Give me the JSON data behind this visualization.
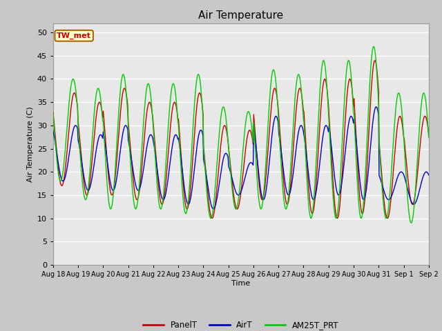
{
  "title": "Air Temperature",
  "ylabel": "Air Temperature (C)",
  "xlabel": "Time",
  "annotation": "TW_met",
  "ylim": [
    0,
    52
  ],
  "yticks": [
    0,
    5,
    10,
    15,
    20,
    25,
    30,
    35,
    40,
    45,
    50
  ],
  "colors": {
    "PanelT": "#cc0000",
    "AirT": "#0000cc",
    "AM25T_PRT": "#00cc00",
    "fig_bg": "#c8c8c8",
    "plot_bg": "#e8e8e8",
    "grid": "#ffffff",
    "annotation_bg": "#ffffcc",
    "annotation_border": "#aa6600"
  },
  "n_days": 15,
  "day_peaks_panel": [
    37,
    35,
    38,
    35,
    35,
    37,
    30,
    29,
    38,
    38,
    40,
    40,
    44,
    32,
    32
  ],
  "day_peaks_air": [
    30,
    28,
    30,
    28,
    28,
    29,
    24,
    22,
    32,
    30,
    30,
    32,
    34,
    20,
    20
  ],
  "day_peaks_am25": [
    40,
    38,
    41,
    39,
    39,
    41,
    34,
    33,
    42,
    41,
    44,
    44,
    47,
    37,
    37
  ],
  "day_mins_panel": [
    17,
    15,
    15,
    14,
    13,
    12,
    10,
    12,
    14,
    13,
    11,
    10,
    11,
    10,
    13
  ],
  "day_mins_air": [
    18,
    16,
    16,
    16,
    14,
    13,
    12,
    15,
    14,
    15,
    14,
    15,
    14,
    14,
    13
  ],
  "day_mins_am25": [
    18,
    14,
    12,
    12,
    12,
    11,
    10,
    12,
    12,
    12,
    10,
    10,
    10,
    10,
    9
  ],
  "phase_panel": 0.6,
  "phase_air": 0.65,
  "phase_am25": 0.55,
  "legend_labels": [
    "PanelT",
    "AirT",
    "AM25T_PRT"
  ]
}
